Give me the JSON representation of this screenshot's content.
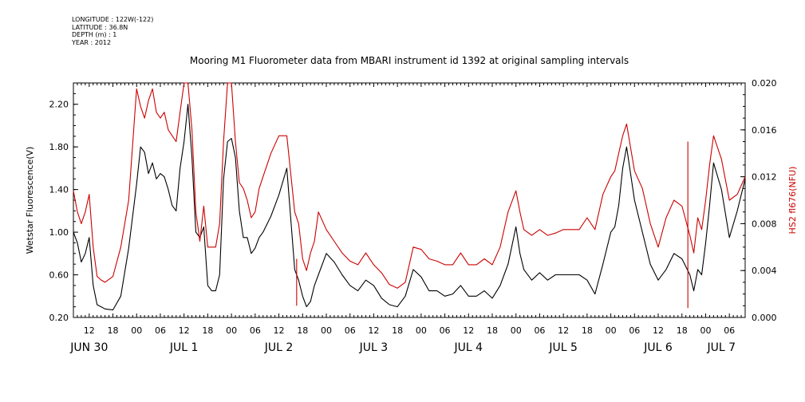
{
  "meta": {
    "longitude": "LONGITUDE : 122W(-122)",
    "latitude": "LATITUDE : 36.8N",
    "depth": "DEPTH (m) : 1",
    "year": "YEAR : 2012"
  },
  "chart_data": {
    "type": "line",
    "title": "Mooring M1 Fluorometer data from MBARI instrument id 1392 at original sampling intervals",
    "ylabel": "Wetstar Fluorescence(V)",
    "y2label": "HS2 fl676(NFU)",
    "ylim": [
      0.2,
      2.4
    ],
    "y2lim": [
      0.0,
      0.02
    ],
    "yticks": [
      "0.20",
      "0.60",
      "1.00",
      "1.40",
      "1.80",
      "2.20"
    ],
    "y2ticks": [
      "0.000",
      "0.004",
      "0.008",
      "0.012",
      "0.016",
      "0.020"
    ],
    "xlim_hours": [
      8,
      178
    ],
    "x_hour_ticks": [
      {
        "h": 12,
        "label": "12"
      },
      {
        "h": 18,
        "label": "18"
      },
      {
        "h": 24,
        "label": "00"
      },
      {
        "h": 30,
        "label": "06"
      },
      {
        "h": 36,
        "label": "12"
      },
      {
        "h": 42,
        "label": "18"
      },
      {
        "h": 48,
        "label": "00"
      },
      {
        "h": 54,
        "label": "06"
      },
      {
        "h": 60,
        "label": "12"
      },
      {
        "h": 66,
        "label": "18"
      },
      {
        "h": 72,
        "label": "00"
      },
      {
        "h": 78,
        "label": "06"
      },
      {
        "h": 84,
        "label": "12"
      },
      {
        "h": 90,
        "label": "18"
      },
      {
        "h": 96,
        "label": "00"
      },
      {
        "h": 102,
        "label": "06"
      },
      {
        "h": 108,
        "label": "12"
      },
      {
        "h": 114,
        "label": "18"
      },
      {
        "h": 120,
        "label": "00"
      },
      {
        "h": 126,
        "label": "06"
      },
      {
        "h": 132,
        "label": "12"
      },
      {
        "h": 138,
        "label": "18"
      },
      {
        "h": 144,
        "label": "00"
      },
      {
        "h": 150,
        "label": "06"
      },
      {
        "h": 156,
        "label": "12"
      },
      {
        "h": 162,
        "label": "18"
      },
      {
        "h": 168,
        "label": "00"
      },
      {
        "h": 174,
        "label": "06"
      }
    ],
    "day_labels": [
      {
        "h": 12,
        "label": "JUN 30"
      },
      {
        "h": 36,
        "label": "JUL 1"
      },
      {
        "h": 60,
        "label": "JUL 2"
      },
      {
        "h": 84,
        "label": "JUL 3"
      },
      {
        "h": 108,
        "label": "JUL 4"
      },
      {
        "h": 132,
        "label": "JUL 5"
      },
      {
        "h": 156,
        "label": "JUL 6"
      },
      {
        "h": 172,
        "label": "JUL 7"
      }
    ],
    "series": [
      {
        "axis": "left",
        "color": "#000000",
        "x": [
          8,
          9,
          10,
          11,
          12,
          13,
          14,
          15,
          16,
          18,
          20,
          22,
          24,
          25,
          26,
          27,
          28,
          29,
          30,
          31,
          32,
          33,
          34,
          35,
          36,
          37,
          38,
          39,
          40,
          41,
          42,
          43,
          44,
          45,
          46,
          47,
          48,
          49,
          50,
          51,
          52,
          53,
          54,
          55,
          56,
          58,
          60,
          62,
          64,
          65,
          66,
          67,
          68,
          69,
          70,
          72,
          74,
          76,
          78,
          80,
          82,
          84,
          86,
          88,
          90,
          92,
          94,
          96,
          98,
          100,
          102,
          104,
          106,
          108,
          110,
          112,
          114,
          116,
          118,
          120,
          121,
          122,
          124,
          126,
          128,
          130,
          132,
          134,
          136,
          138,
          140,
          142,
          144,
          145,
          146,
          147,
          148,
          150,
          152,
          154,
          156,
          158,
          160,
          162,
          164,
          165,
          166,
          167,
          168,
          169,
          170,
          172,
          174,
          176,
          178
        ],
        "y": [
          1.0,
          0.9,
          0.72,
          0.8,
          0.95,
          0.5,
          0.32,
          0.3,
          0.28,
          0.27,
          0.4,
          0.85,
          1.45,
          1.8,
          1.75,
          1.55,
          1.65,
          1.5,
          1.55,
          1.52,
          1.4,
          1.25,
          1.2,
          1.6,
          1.85,
          2.2,
          1.7,
          1.0,
          0.95,
          1.05,
          0.5,
          0.45,
          0.45,
          0.6,
          1.5,
          1.85,
          1.88,
          1.7,
          1.2,
          0.95,
          0.95,
          0.8,
          0.85,
          0.95,
          1.0,
          1.15,
          1.35,
          1.6,
          0.65,
          0.55,
          0.4,
          0.3,
          0.35,
          0.5,
          0.6,
          0.8,
          0.72,
          0.6,
          0.5,
          0.45,
          0.55,
          0.5,
          0.38,
          0.32,
          0.3,
          0.4,
          0.65,
          0.58,
          0.45,
          0.45,
          0.4,
          0.42,
          0.5,
          0.4,
          0.4,
          0.45,
          0.38,
          0.5,
          0.7,
          1.05,
          0.8,
          0.65,
          0.55,
          0.62,
          0.55,
          0.6,
          0.6,
          0.6,
          0.6,
          0.55,
          0.42,
          0.7,
          1.0,
          1.05,
          1.25,
          1.6,
          1.8,
          1.3,
          1.0,
          0.7,
          0.55,
          0.65,
          0.8,
          0.75,
          0.6,
          0.45,
          0.65,
          0.6,
          0.9,
          1.25,
          1.65,
          1.4,
          0.95,
          1.2,
          1.5
        ]
      },
      {
        "axis": "right",
        "color": "#cc0000",
        "x": [
          8,
          9,
          10,
          11,
          12,
          13,
          14,
          15,
          16,
          18,
          20,
          22,
          24,
          25,
          26,
          27,
          28,
          29,
          30,
          31,
          32,
          33,
          34,
          35,
          36,
          37,
          38,
          39,
          40,
          41,
          42,
          43,
          44,
          45,
          46,
          47,
          48,
          49,
          50,
          51,
          52,
          53,
          54,
          55,
          56,
          58,
          60,
          62,
          64,
          65,
          66,
          67,
          68,
          69,
          70,
          72,
          74,
          76,
          78,
          80,
          82,
          84,
          86,
          88,
          90,
          92,
          94,
          96,
          98,
          100,
          102,
          104,
          106,
          108,
          110,
          112,
          114,
          116,
          118,
          120,
          121,
          122,
          124,
          126,
          128,
          130,
          132,
          134,
          136,
          138,
          140,
          142,
          144,
          145,
          146,
          147,
          148,
          150,
          152,
          154,
          156,
          158,
          160,
          162,
          164,
          165,
          166,
          167,
          168,
          169,
          170,
          172,
          174,
          176,
          178
        ],
        "y": [
          0.0108,
          0.009,
          0.008,
          0.009,
          0.0105,
          0.006,
          0.0035,
          0.0032,
          0.003,
          0.0035,
          0.006,
          0.01,
          0.0195,
          0.018,
          0.017,
          0.0185,
          0.0195,
          0.0175,
          0.017,
          0.0175,
          0.016,
          0.0155,
          0.015,
          0.0175,
          0.02,
          0.0205,
          0.016,
          0.009,
          0.0065,
          0.0095,
          0.006,
          0.006,
          0.006,
          0.008,
          0.015,
          0.02,
          0.0205,
          0.015,
          0.0115,
          0.011,
          0.01,
          0.0085,
          0.009,
          0.011,
          0.012,
          0.014,
          0.0155,
          0.0155,
          0.009,
          0.008,
          0.005,
          0.004,
          0.0055,
          0.0065,
          0.009,
          0.0075,
          0.0065,
          0.0055,
          0.0048,
          0.0045,
          0.0055,
          0.0045,
          0.0038,
          0.0028,
          0.0025,
          0.003,
          0.006,
          0.0058,
          0.005,
          0.0048,
          0.0045,
          0.0045,
          0.0055,
          0.0045,
          0.0045,
          0.005,
          0.0045,
          0.006,
          0.009,
          0.0108,
          0.009,
          0.0075,
          0.007,
          0.0075,
          0.007,
          0.0072,
          0.0075,
          0.0075,
          0.0075,
          0.0085,
          0.0075,
          0.0105,
          0.012,
          0.0125,
          0.014,
          0.0155,
          0.0165,
          0.0125,
          0.011,
          0.008,
          0.006,
          0.0085,
          0.01,
          0.0095,
          0.007,
          0.0055,
          0.0085,
          0.0075,
          0.01,
          0.013,
          0.0155,
          0.0135,
          0.01,
          0.0105,
          0.012
        ]
      }
    ],
    "spikes": [
      {
        "color": "#cc0000",
        "h": 163.5,
        "y2_low": 0.0008,
        "y2_high": 0.015
      },
      {
        "color": "#cc0000",
        "h": 64.5,
        "y2_low": 0.001,
        "y2_high": 0.005
      }
    ]
  }
}
